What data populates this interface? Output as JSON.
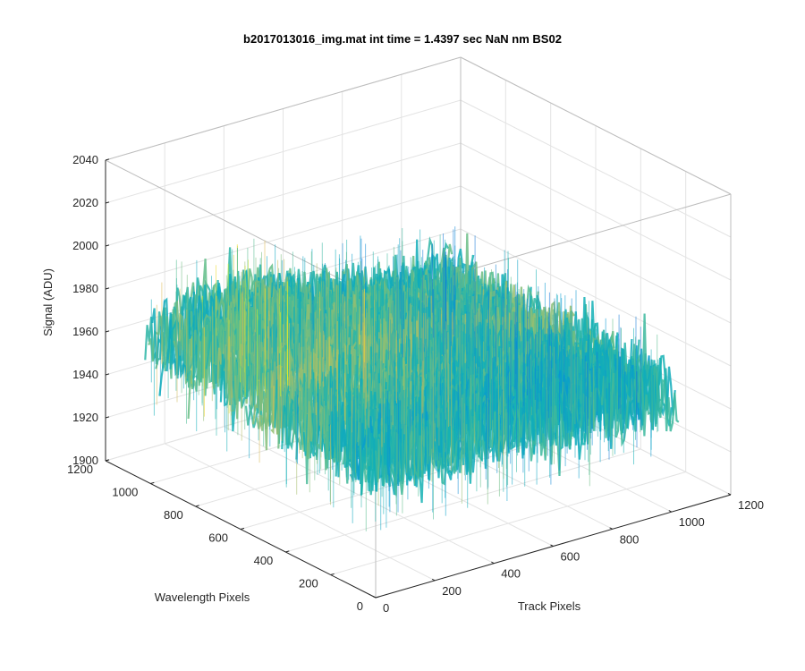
{
  "chart_data": {
    "type": "surface",
    "title": "b2017013016_img.mat int time = 1.4397 sec  NaN nm BS02",
    "xlabel": "Track Pixels",
    "ylabel": "Wavelength Pixels",
    "zlabel": "Signal (ADU)",
    "xlim": [
      0,
      1200
    ],
    "ylim": [
      0,
      1200
    ],
    "zlim": [
      1900,
      2040
    ],
    "xticks": [
      "0",
      "200",
      "400",
      "600",
      "800",
      "1000",
      "1200"
    ],
    "yticks": [
      "0",
      "200",
      "400",
      "600",
      "800",
      "1000",
      "1200"
    ],
    "zticks": [
      "1900",
      "1920",
      "1940",
      "1960",
      "1980",
      "2000",
      "2020",
      "2040"
    ],
    "data_extent": {
      "track_pixels": [
        0,
        1024
      ],
      "wavelength_pixels": [
        0,
        1024
      ]
    },
    "signal_mean": 1960,
    "signal_range": [
      1915,
      2025
    ],
    "colormap": "parula",
    "grid": true,
    "box": true
  }
}
